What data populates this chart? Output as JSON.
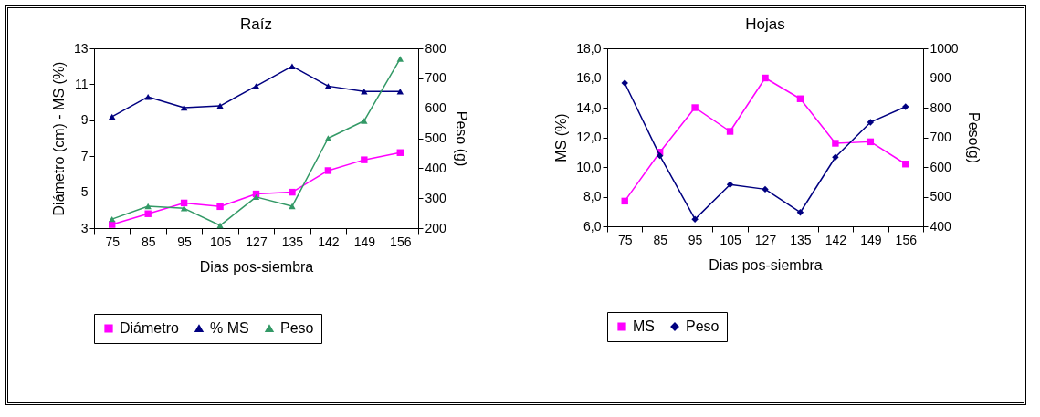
{
  "chart_data": [
    {
      "type": "line",
      "title": "Raíz",
      "xlabel": "Dias pos-siembra",
      "ylabel": "Diámetro (cm) - MS (%)",
      "y2label": "Peso (g)",
      "categories": [
        "75",
        "85",
        "95",
        "105",
        "127",
        "135",
        "142",
        "149",
        "156"
      ],
      "series": [
        {
          "name": "Diámetro",
          "color": "#ff00ff",
          "marker": "square",
          "values": [
            3.2,
            3.8,
            4.4,
            4.2,
            4.9,
            5.0,
            6.2,
            6.8,
            7.2
          ]
        },
        {
          "name": "% MS",
          "color": "#000080",
          "marker": "triangle",
          "values": [
            9.2,
            10.3,
            9.7,
            9.8,
            10.9,
            12.0,
            10.9,
            10.6,
            10.6
          ]
        },
        {
          "name": "Peso",
          "color": "#339966",
          "marker": "triangle",
          "axis": "y2",
          "values": [
            230,
            273,
            266,
            209,
            304,
            273,
            500,
            558,
            765
          ]
        }
      ],
      "ylim": [
        3,
        13
      ],
      "yticks": [
        3,
        5,
        7,
        9,
        11,
        13
      ],
      "y2lim": [
        200,
        800
      ],
      "y2ticks": [
        200,
        300,
        400,
        500,
        600,
        700,
        800
      ],
      "legend": "bottom"
    },
    {
      "type": "line",
      "title": "Hojas",
      "xlabel": "Dias pos-siembra",
      "ylabel": "MS (%)",
      "y2label": "Peso(g)",
      "categories": [
        "75",
        "85",
        "95",
        "105",
        "127",
        "135",
        "142",
        "149",
        "156"
      ],
      "series": [
        {
          "name": "MS",
          "color": "#ff00ff",
          "marker": "square",
          "values": [
            7.7,
            11.0,
            14.0,
            12.4,
            16.0,
            14.6,
            11.6,
            11.7,
            10.2
          ]
        },
        {
          "name": "Peso",
          "color": "#000080",
          "marker": "diamond",
          "axis": "y2",
          "values": [
            883,
            638,
            424,
            541,
            525,
            447,
            633,
            751,
            803
          ]
        }
      ],
      "ylim": [
        6,
        18
      ],
      "yticks": [
        {
          "value": 6,
          "label": "6,0"
        },
        {
          "value": 8,
          "label": "8,0"
        },
        {
          "value": 10,
          "label": "10,0"
        },
        {
          "value": 12,
          "label": "12,0"
        },
        {
          "value": 14,
          "label": "14,0"
        },
        {
          "value": 16,
          "label": "16,0"
        },
        {
          "value": 18,
          "label": "18,0"
        }
      ],
      "y2lim": [
        400,
        1000
      ],
      "y2ticks": [
        400,
        500,
        600,
        700,
        800,
        900,
        1000
      ],
      "legend": "bottom"
    }
  ]
}
